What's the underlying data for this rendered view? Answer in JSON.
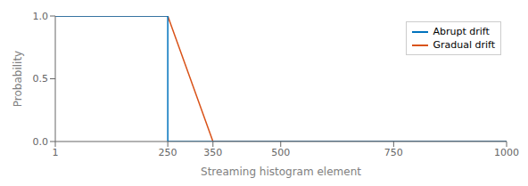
{
  "chart_data": {
    "type": "line",
    "xlabel": "Streaming histogram element",
    "ylabel": "Probability",
    "series": [
      {
        "name": "Abrupt drift",
        "color": "#0072bd",
        "x": [
          1,
          250,
          250,
          1000
        ],
        "values": [
          1,
          1,
          0,
          0
        ]
      },
      {
        "name": "Gradual drift",
        "color": "#d95319",
        "x": [
          1,
          250,
          350,
          1000
        ],
        "values": [
          1,
          1,
          0,
          0
        ]
      }
    ],
    "xlim": [
      1,
      1000
    ],
    "ylim": [
      0,
      1
    ],
    "xticks": [
      1,
      250,
      350,
      500,
      750,
      1000
    ],
    "yticks": [
      {
        "value": 0,
        "label": "0.0"
      },
      {
        "value": 0.5,
        "label": "0.5"
      },
      {
        "value": 1,
        "label": "1.0"
      }
    ],
    "grid": false,
    "legend": "upper right"
  }
}
